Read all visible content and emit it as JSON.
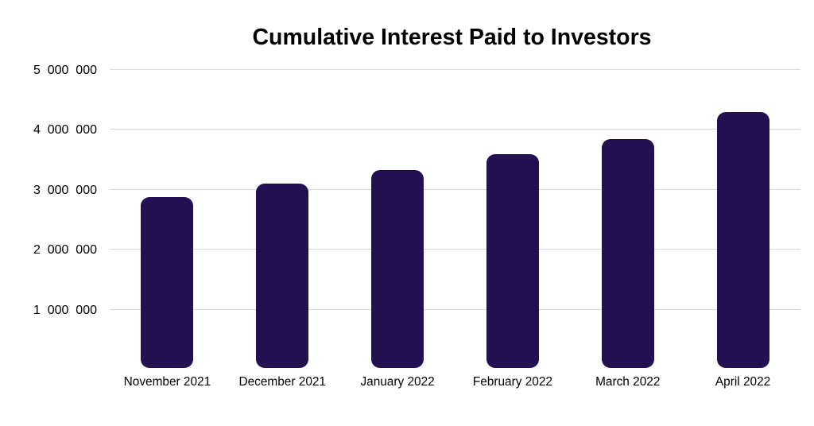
{
  "chart_data": {
    "type": "bar",
    "title": "Cumulative Interest Paid to Investors",
    "categories": [
      "November 2021",
      "December 2021",
      "January 2022",
      "February 2022",
      "March 2022",
      "April 2022"
    ],
    "values": [
      2870000,
      3095000,
      3325000,
      3590000,
      3835000,
      4285000
    ],
    "y_ticks": [
      1000000,
      2000000,
      3000000,
      4000000,
      5000000
    ],
    "y_tick_labels": [
      "1 000 000",
      "2 000 000",
      "3 000 000",
      "4 000 000",
      "5 000 000"
    ],
    "xlabel": "",
    "ylabel": "",
    "ylim": [
      0,
      5000000
    ],
    "grid": "horizontal",
    "legend": "none",
    "bar_color": "#221051",
    "gridline_color": "#d9d9d9",
    "background_color": "#ffffff",
    "text_color": "#000000"
  }
}
